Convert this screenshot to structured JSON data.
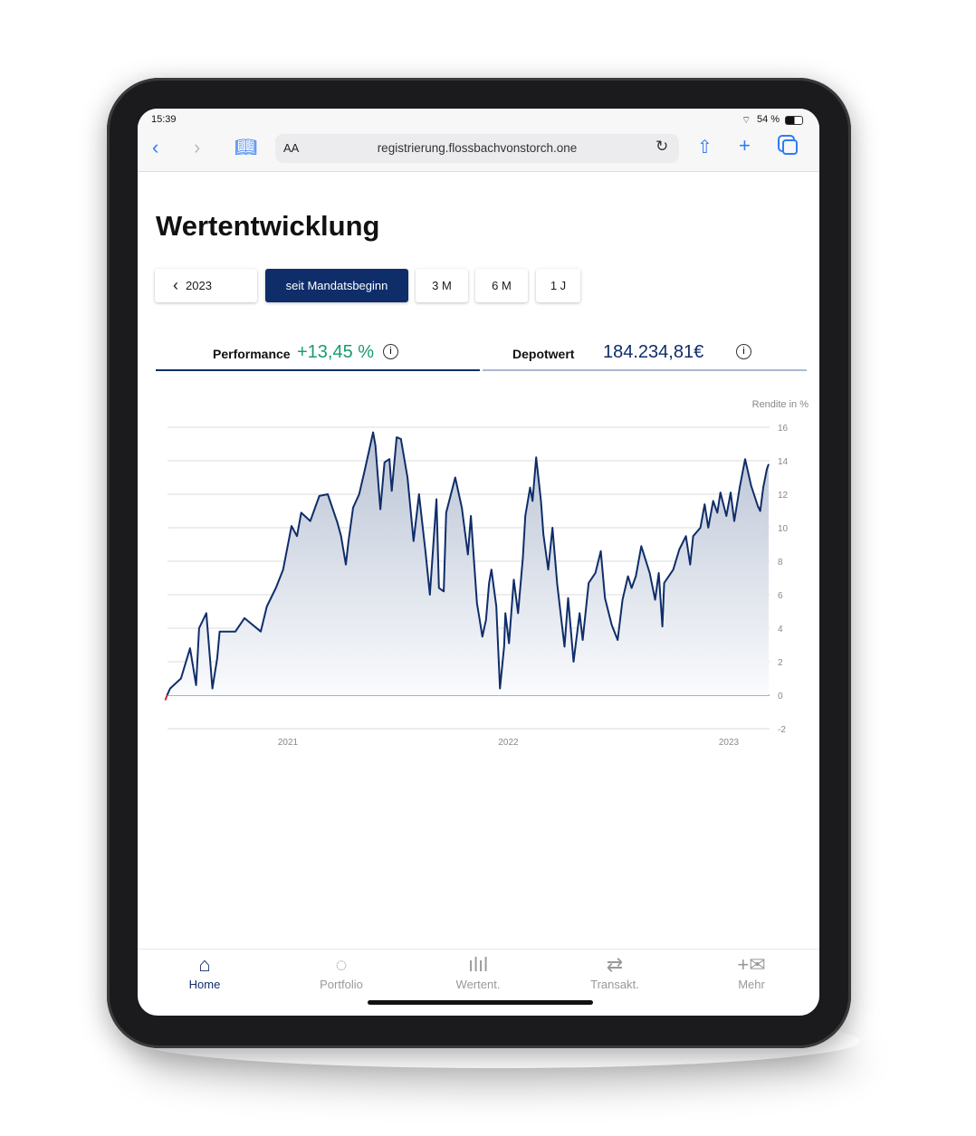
{
  "status_bar": {
    "time": "15:39",
    "battery": "54 %"
  },
  "browser": {
    "url": "registrierung.flossbachvonstorch.one",
    "text_size": "AA"
  },
  "page": {
    "title": "Wertentwicklung"
  },
  "period_buttons": {
    "back": "2023",
    "items": [
      "seit Mandatsbeginn",
      "3 M",
      "6 M",
      "1 J"
    ],
    "selected": "seit Mandatsbeginn"
  },
  "kpis": {
    "performance_label": "Performance",
    "performance_value": "+13,45 %",
    "depot_label": "Depotwert",
    "depot_value": "184.234,81€"
  },
  "colors": {
    "navy": "#0f2d69",
    "green": "#1a9a74",
    "line": "#0f2d69",
    "negative": "#e0202a"
  },
  "chart_data": {
    "type": "area",
    "ylabel": "Rendite in %",
    "ylim": [
      -2,
      16
    ],
    "yticks": [
      "16",
      "14",
      "12",
      "10",
      "8",
      "6",
      "4",
      "2",
      "0",
      "-2"
    ],
    "xticks": [
      {
        "label": "2021",
        "date": "2021-01-01"
      },
      {
        "label": "2022",
        "date": "2022-01-01"
      },
      {
        "label": "2023",
        "date": "2023-01-01"
      }
    ],
    "grid": true,
    "points": [
      [
        "2020-06-12",
        -0.3
      ],
      [
        "2020-06-15",
        0
      ],
      [
        "2020-06-20",
        0.4
      ],
      [
        "2020-07-08",
        1.0
      ],
      [
        "2020-07-23",
        2.8
      ],
      [
        "2020-08-02",
        0.6
      ],
      [
        "2020-08-07",
        4.0
      ],
      [
        "2020-08-19",
        4.9
      ],
      [
        "2020-08-29",
        0.4
      ],
      [
        "2020-09-06",
        2.2
      ],
      [
        "2020-09-10",
        3.8
      ],
      [
        "2020-10-06",
        3.8
      ],
      [
        "2020-10-21",
        4.6
      ],
      [
        "2020-11-17",
        3.8
      ],
      [
        "2020-11-27",
        5.3
      ],
      [
        "2020-12-12",
        6.4
      ],
      [
        "2020-12-24",
        7.5
      ],
      [
        "2021-01-07",
        10.1
      ],
      [
        "2021-01-16",
        9.5
      ],
      [
        "2021-01-23",
        10.9
      ],
      [
        "2021-02-07",
        10.4
      ],
      [
        "2021-02-22",
        11.9
      ],
      [
        "2021-03-08",
        12.0
      ],
      [
        "2021-03-24",
        10.3
      ],
      [
        "2021-03-30",
        9.5
      ],
      [
        "2021-04-07",
        7.8
      ],
      [
        "2021-04-11",
        9.1
      ],
      [
        "2021-04-19",
        11.2
      ],
      [
        "2021-04-29",
        12.0
      ],
      [
        "2021-05-08",
        13.4
      ],
      [
        "2021-05-22",
        15.7
      ],
      [
        "2021-05-26",
        14.9
      ],
      [
        "2021-06-03",
        11.1
      ],
      [
        "2021-06-10",
        13.9
      ],
      [
        "2021-06-18",
        14.1
      ],
      [
        "2021-06-22",
        12.2
      ],
      [
        "2021-06-30",
        15.4
      ],
      [
        "2021-07-07",
        15.3
      ],
      [
        "2021-07-18",
        13.0
      ],
      [
        "2021-07-28",
        9.2
      ],
      [
        "2021-08-06",
        12.0
      ],
      [
        "2021-08-17",
        8.5
      ],
      [
        "2021-08-24",
        6.0
      ],
      [
        "2021-09-04",
        11.7
      ],
      [
        "2021-09-08",
        6.4
      ],
      [
        "2021-09-16",
        6.2
      ],
      [
        "2021-09-20",
        10.9
      ],
      [
        "2021-10-05",
        13.0
      ],
      [
        "2021-10-16",
        11.2
      ],
      [
        "2021-10-26",
        8.4
      ],
      [
        "2021-10-31",
        10.7
      ],
      [
        "2021-11-10",
        5.5
      ],
      [
        "2021-11-15",
        4.4
      ],
      [
        "2021-11-19",
        3.5
      ],
      [
        "2021-11-25",
        4.5
      ],
      [
        "2021-11-30",
        6.7
      ],
      [
        "2021-12-04",
        7.5
      ],
      [
        "2021-12-12",
        5.3
      ],
      [
        "2021-12-18",
        0.4
      ],
      [
        "2021-12-25",
        2.9
      ],
      [
        "2021-12-27",
        4.9
      ],
      [
        "2022-01-02",
        3.1
      ],
      [
        "2022-01-10",
        6.9
      ],
      [
        "2022-01-17",
        4.9
      ],
      [
        "2022-01-25",
        8.2
      ],
      [
        "2022-01-29",
        10.7
      ],
      [
        "2022-02-06",
        12.4
      ],
      [
        "2022-02-10",
        11.6
      ],
      [
        "2022-02-16",
        14.2
      ],
      [
        "2022-02-24",
        11.6
      ],
      [
        "2022-02-28",
        9.6
      ],
      [
        "2022-03-08",
        7.5
      ],
      [
        "2022-03-15",
        10.0
      ],
      [
        "2022-03-23",
        6.6
      ],
      [
        "2022-04-04",
        2.9
      ],
      [
        "2022-04-10",
        5.8
      ],
      [
        "2022-04-19",
        2.0
      ],
      [
        "2022-04-29",
        4.9
      ],
      [
        "2022-05-04",
        3.3
      ],
      [
        "2022-05-14",
        6.7
      ],
      [
        "2022-05-25",
        7.3
      ],
      [
        "2022-06-03",
        8.6
      ],
      [
        "2022-06-10",
        5.8
      ],
      [
        "2022-06-21",
        4.2
      ],
      [
        "2022-07-01",
        3.3
      ],
      [
        "2022-07-09",
        5.7
      ],
      [
        "2022-07-18",
        7.1
      ],
      [
        "2022-07-24",
        6.4
      ],
      [
        "2022-07-31",
        7.1
      ],
      [
        "2022-08-09",
        8.9
      ],
      [
        "2022-08-23",
        7.3
      ],
      [
        "2022-09-01",
        5.7
      ],
      [
        "2022-09-07",
        7.3
      ],
      [
        "2022-09-13",
        4.1
      ],
      [
        "2022-09-16",
        6.7
      ],
      [
        "2022-10-01",
        7.5
      ],
      [
        "2022-10-11",
        8.7
      ],
      [
        "2022-10-22",
        9.5
      ],
      [
        "2022-10-29",
        7.8
      ],
      [
        "2022-11-03",
        9.5
      ],
      [
        "2022-11-15",
        10.0
      ],
      [
        "2022-11-22",
        11.4
      ],
      [
        "2022-11-28",
        10.0
      ],
      [
        "2022-12-06",
        11.6
      ],
      [
        "2022-12-13",
        10.9
      ],
      [
        "2022-12-18",
        12.1
      ],
      [
        "2022-12-28",
        10.7
      ],
      [
        "2023-01-04",
        12.1
      ],
      [
        "2023-01-10",
        10.4
      ],
      [
        "2023-01-19",
        12.4
      ],
      [
        "2023-01-28",
        14.1
      ],
      [
        "2023-02-07",
        12.5
      ],
      [
        "2023-02-18",
        11.3
      ],
      [
        "2023-02-22",
        11.0
      ],
      [
        "2023-02-27",
        12.4
      ],
      [
        "2023-03-05",
        13.5
      ],
      [
        "2023-03-08",
        13.8
      ]
    ]
  },
  "bottom_nav": [
    {
      "label": "Home",
      "icon": "home-icon",
      "active": true
    },
    {
      "label": "Portfolio",
      "icon": "portfolio-icon"
    },
    {
      "label": "Wertent.",
      "icon": "bar-chart-icon"
    },
    {
      "label": "Transakt.",
      "icon": "transfer-icon"
    },
    {
      "label": "Mehr",
      "icon": "plus-mail-icon"
    }
  ]
}
